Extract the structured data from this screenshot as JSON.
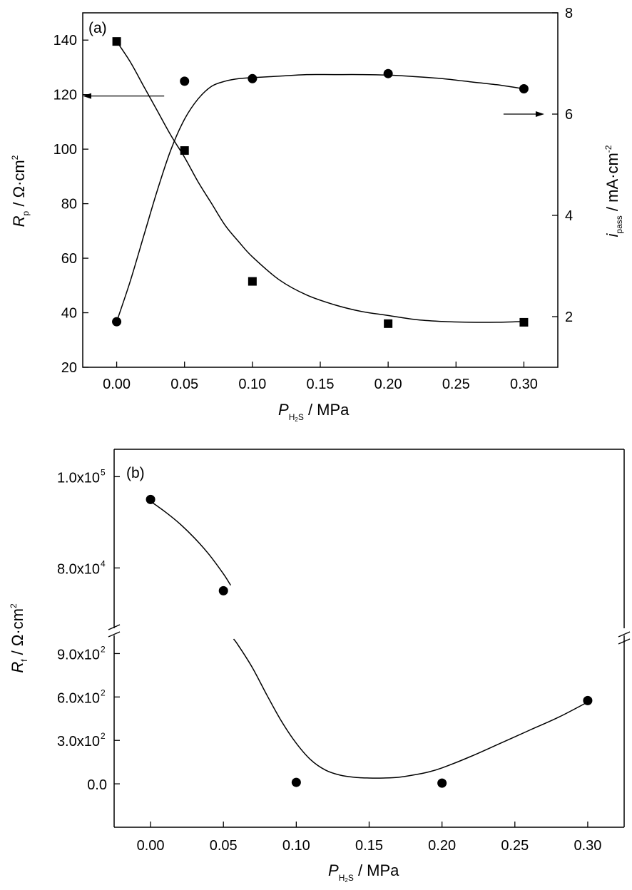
{
  "chart_data": [
    {
      "type": "scatter",
      "panel_label": "(a)",
      "x_axis": {
        "label": {
          "sym": "P",
          "sub": "H",
          "sub2": "2",
          "sub3": "S",
          "unit": " / MPa"
        },
        "lim": [
          -0.025,
          0.325
        ],
        "ticks": [
          0.0,
          0.05,
          0.1,
          0.15,
          0.2,
          0.25,
          0.3
        ],
        "tick_labels": [
          "0.00",
          "0.05",
          "0.10",
          "0.15",
          "0.20",
          "0.25",
          "0.30"
        ]
      },
      "y_left": {
        "label": {
          "sym": "R",
          "sub": "p",
          "unit": " / Ω·cm",
          "sup": "2"
        },
        "lim": [
          20,
          150
        ],
        "ticks": [
          20,
          40,
          60,
          80,
          100,
          120,
          140
        ],
        "tick_labels": [
          "20",
          "40",
          "60",
          "80",
          "100",
          "120",
          "140"
        ]
      },
      "y_right": {
        "label": {
          "sym": "i",
          "sub": "pass",
          "unit": " / mA·cm",
          "sup": "-2"
        },
        "lim": [
          1.0,
          8.0
        ],
        "ticks": [
          2,
          4,
          6,
          8
        ],
        "tick_labels": [
          "2",
          "4",
          "6",
          "8"
        ]
      },
      "series": [
        {
          "name": "Rp",
          "axis": "left",
          "marker": "square",
          "x": [
            0.0,
            0.05,
            0.1,
            0.2,
            0.3
          ],
          "y": [
            139.5,
            99.5,
            51.5,
            36.0,
            36.5
          ],
          "fit_x": [
            0.0,
            0.01,
            0.02,
            0.03,
            0.04,
            0.05,
            0.06,
            0.07,
            0.08,
            0.09,
            0.1,
            0.12,
            0.14,
            0.16,
            0.18,
            0.2,
            0.22,
            0.24,
            0.26,
            0.28,
            0.3
          ],
          "fit_y": [
            139.5,
            132,
            123,
            114,
            105,
            97,
            88,
            80,
            72,
            66,
            60.5,
            52,
            46.5,
            43,
            40.5,
            39,
            37.5,
            36.8,
            36.5,
            36.5,
            36.8
          ]
        },
        {
          "name": "ipass",
          "axis": "right",
          "marker": "circle",
          "x": [
            0.0,
            0.05,
            0.1,
            0.2,
            0.3
          ],
          "y": [
            1.9,
            6.65,
            6.7,
            6.8,
            6.5
          ],
          "fit_x": [
            0.0,
            0.01,
            0.02,
            0.03,
            0.04,
            0.05,
            0.06,
            0.07,
            0.08,
            0.09,
            0.1,
            0.12,
            0.14,
            0.16,
            0.18,
            0.2,
            0.22,
            0.24,
            0.26,
            0.28,
            0.3
          ],
          "fit_y": [
            1.9,
            2.7,
            3.6,
            4.5,
            5.3,
            5.9,
            6.3,
            6.55,
            6.65,
            6.7,
            6.72,
            6.75,
            6.78,
            6.78,
            6.78,
            6.77,
            6.74,
            6.7,
            6.64,
            6.58,
            6.5
          ]
        }
      ],
      "arrows": [
        {
          "axis": "left",
          "direction": "left",
          "at_y": 119.5,
          "from_x": 0.035,
          "to_x": -0.025
        },
        {
          "axis": "right",
          "direction": "right",
          "at_y": 6.0,
          "from_x": 0.285,
          "to_x": 0.315
        }
      ]
    },
    {
      "type": "scatter",
      "panel_label": "(b)",
      "x_axis": {
        "label": {
          "sym": "P",
          "sub": "H",
          "sub2": "2",
          "sub3": "S",
          "unit": " / MPa"
        },
        "lim": [
          -0.025,
          0.325
        ],
        "ticks": [
          0.0,
          0.05,
          0.1,
          0.15,
          0.2,
          0.25,
          0.3
        ],
        "tick_labels": [
          "0.00",
          "0.05",
          "0.10",
          "0.15",
          "0.20",
          "0.25",
          "0.30"
        ]
      },
      "y_axis": {
        "label": {
          "sym": "R",
          "sub": "f",
          "unit": " / Ω·cm",
          "sup": "2"
        },
        "broken": true,
        "lower_segment": {
          "lim": [
            -300,
            1050
          ],
          "ticks": [
            0,
            300,
            600,
            900
          ],
          "tick_labels": [
            {
              "mant": "0.0",
              "exp": ""
            },
            {
              "mant": "3.0x10",
              "exp": "2"
            },
            {
              "mant": "6.0x10",
              "exp": "2"
            },
            {
              "mant": "9.0x10",
              "exp": "2"
            }
          ]
        },
        "upper_segment": {
          "lim": [
            66000,
            106000
          ],
          "ticks": [
            80000,
            100000
          ],
          "tick_labels": [
            {
              "mant": "8.0x10",
              "exp": "4"
            },
            {
              "mant": "1.0x10",
              "exp": "5"
            }
          ]
        }
      },
      "series": [
        {
          "name": "Rf",
          "marker": "circle",
          "x": [
            0.0,
            0.05,
            0.1,
            0.2,
            0.3
          ],
          "y": [
            95000,
            75000,
            10,
            5,
            575
          ]
        }
      ],
      "fit_upper": {
        "x": [
          0.0,
          0.01,
          0.02,
          0.03,
          0.04,
          0.05,
          0.055
        ],
        "y": [
          94600,
          92300,
          89700,
          86600,
          83000,
          78700,
          76200
        ]
      },
      "fit_lower": {
        "x": [
          0.057,
          0.06,
          0.07,
          0.08,
          0.09,
          0.1,
          0.11,
          0.12,
          0.13,
          0.14,
          0.15,
          0.16,
          0.17,
          0.18,
          0.19,
          0.2,
          0.22,
          0.24,
          0.26,
          0.28,
          0.3
        ],
        "y": [
          1000,
          960,
          800,
          610,
          430,
          280,
          165,
          95,
          60,
          45,
          40,
          40,
          45,
          60,
          80,
          110,
          190,
          280,
          370,
          460,
          565
        ]
      }
    }
  ]
}
